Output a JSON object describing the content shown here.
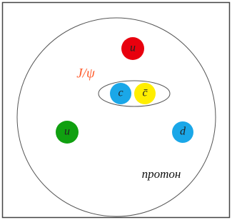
{
  "nodes": [
    {
      "label": "u",
      "color": "#e8000e"
    },
    {
      "label": "c",
      "color": "#1aa7e8"
    },
    {
      "label": "c̄",
      "color": "#ffee00"
    },
    {
      "label": "u",
      "color": "#10a010"
    },
    {
      "label": "d",
      "color": "#1aa7e8"
    }
  ],
  "meson": {
    "label": "J/ψ",
    "color": "#ff5a2a"
  },
  "particle": {
    "label": "протон"
  }
}
